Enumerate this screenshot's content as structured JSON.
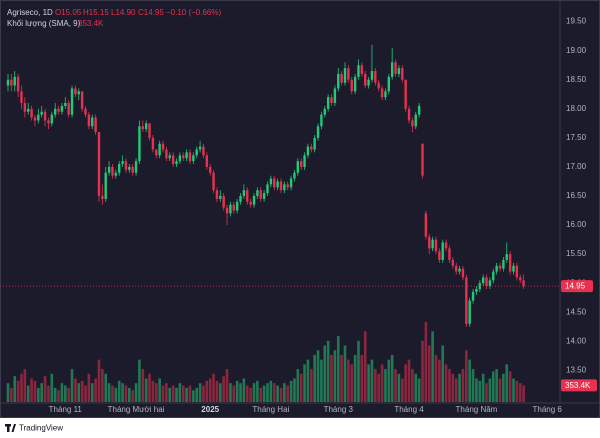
{
  "header": {
    "symbol": "Agriseco, 1D",
    "open": "O15.05",
    "high": "H15.15",
    "low": "L14.90",
    "close": "C14.95",
    "change": "−0.10 (−0.66%)",
    "volume_title": "Khối lượng (SMA, 9)",
    "volume_value": "353.4K"
  },
  "chart_data": {
    "type": "candlestick",
    "candles": [
      [
        18.4,
        18.6,
        18.3,
        18.5
      ],
      [
        18.5,
        18.6,
        18.3,
        18.4
      ],
      [
        18.4,
        18.65,
        18.3,
        18.55
      ],
      [
        18.55,
        18.6,
        18.2,
        18.3
      ],
      [
        18.3,
        18.4,
        18.0,
        18.1
      ],
      [
        18.1,
        18.2,
        17.85,
        17.95
      ],
      [
        17.95,
        18.1,
        17.9,
        18.0
      ],
      [
        18.0,
        18.05,
        17.8,
        17.85
      ],
      [
        17.85,
        17.9,
        17.7,
        17.8
      ],
      [
        17.8,
        18.0,
        17.75,
        17.9
      ],
      [
        17.9,
        18.05,
        17.85,
        17.95
      ],
      [
        17.95,
        18.0,
        17.7,
        17.8
      ],
      [
        17.8,
        17.85,
        17.65,
        17.75
      ],
      [
        17.75,
        17.95,
        17.7,
        17.9
      ],
      [
        17.9,
        18.1,
        17.85,
        18.0
      ],
      [
        18.0,
        18.05,
        17.9,
        17.95
      ],
      [
        17.95,
        18.1,
        17.9,
        18.05
      ],
      [
        18.05,
        18.2,
        18.0,
        18.1
      ],
      [
        18.1,
        18.15,
        17.85,
        17.9
      ],
      [
        17.9,
        18.4,
        17.85,
        18.35
      ],
      [
        18.35,
        18.4,
        18.2,
        18.25
      ],
      [
        18.25,
        18.35,
        18.15,
        18.3
      ],
      [
        18.3,
        18.3,
        17.95,
        18.0
      ],
      [
        18.0,
        18.05,
        17.85,
        17.9
      ],
      [
        17.9,
        17.95,
        17.65,
        17.7
      ],
      [
        17.7,
        17.9,
        17.65,
        17.85
      ],
      [
        17.85,
        17.9,
        17.55,
        17.6
      ],
      [
        17.6,
        17.6,
        16.4,
        16.5
      ],
      [
        16.5,
        16.7,
        16.35,
        16.45
      ],
      [
        16.45,
        17.0,
        16.4,
        16.9
      ],
      [
        16.9,
        17.1,
        16.85,
        17.0
      ],
      [
        17.0,
        17.05,
        16.8,
        16.85
      ],
      [
        16.85,
        16.95,
        16.8,
        16.9
      ],
      [
        16.9,
        17.1,
        16.85,
        17.05
      ],
      [
        17.05,
        17.2,
        17.0,
        17.1
      ],
      [
        17.1,
        17.15,
        16.9,
        16.95
      ],
      [
        16.95,
        17.05,
        16.9,
        17.0
      ],
      [
        17.0,
        17.05,
        16.85,
        16.9
      ],
      [
        16.9,
        17.15,
        16.85,
        17.1
      ],
      [
        17.1,
        17.8,
        17.05,
        17.7
      ],
      [
        17.7,
        17.8,
        17.6,
        17.65
      ],
      [
        17.65,
        17.8,
        17.6,
        17.75
      ],
      [
        17.75,
        17.75,
        17.45,
        17.5
      ],
      [
        17.5,
        17.55,
        17.25,
        17.3
      ],
      [
        17.3,
        17.3,
        17.15,
        17.2
      ],
      [
        17.2,
        17.45,
        17.15,
        17.4
      ],
      [
        17.4,
        17.45,
        17.25,
        17.3
      ],
      [
        17.3,
        17.35,
        17.1,
        17.15
      ],
      [
        17.15,
        17.25,
        17.1,
        17.2
      ],
      [
        17.2,
        17.25,
        17.0,
        17.05
      ],
      [
        17.05,
        17.15,
        17.0,
        17.1
      ],
      [
        17.1,
        17.25,
        17.05,
        17.2
      ],
      [
        17.2,
        17.25,
        17.1,
        17.15
      ],
      [
        17.15,
        17.3,
        17.1,
        17.25
      ],
      [
        17.25,
        17.3,
        17.05,
        17.1
      ],
      [
        17.1,
        17.25,
        17.05,
        17.2
      ],
      [
        17.2,
        17.35,
        17.15,
        17.3
      ],
      [
        17.3,
        17.45,
        17.25,
        17.35
      ],
      [
        17.35,
        17.4,
        17.15,
        17.2
      ],
      [
        17.2,
        17.25,
        16.95,
        17.0
      ],
      [
        17.0,
        17.05,
        16.85,
        16.9
      ],
      [
        16.9,
        16.95,
        16.55,
        16.6
      ],
      [
        16.6,
        16.65,
        16.4,
        16.45
      ],
      [
        16.45,
        16.6,
        16.4,
        16.5
      ],
      [
        16.5,
        16.55,
        16.25,
        16.3
      ],
      [
        16.3,
        16.35,
        16.0,
        16.2
      ],
      [
        16.2,
        16.4,
        16.15,
        16.35
      ],
      [
        16.35,
        16.4,
        16.2,
        16.25
      ],
      [
        16.25,
        16.45,
        16.2,
        16.4
      ],
      [
        16.4,
        16.55,
        16.35,
        16.5
      ],
      [
        16.5,
        16.7,
        16.45,
        16.6
      ],
      [
        16.6,
        16.65,
        16.35,
        16.4
      ],
      [
        16.4,
        16.45,
        16.3,
        16.35
      ],
      [
        16.35,
        16.55,
        16.3,
        16.5
      ],
      [
        16.5,
        16.65,
        16.45,
        16.6
      ],
      [
        16.6,
        16.65,
        16.4,
        16.45
      ],
      [
        16.45,
        16.6,
        16.4,
        16.55
      ],
      [
        16.55,
        16.75,
        16.5,
        16.7
      ],
      [
        16.7,
        16.85,
        16.65,
        16.8
      ],
      [
        16.8,
        16.85,
        16.6,
        16.65
      ],
      [
        16.65,
        16.8,
        16.6,
        16.75
      ],
      [
        16.75,
        16.8,
        16.55,
        16.6
      ],
      [
        16.6,
        16.75,
        16.55,
        16.7
      ],
      [
        16.7,
        16.75,
        16.6,
        16.65
      ],
      [
        16.65,
        16.85,
        16.6,
        16.8
      ],
      [
        16.8,
        16.95,
        16.75,
        16.9
      ],
      [
        16.9,
        17.15,
        16.85,
        17.1
      ],
      [
        17.1,
        17.15,
        16.95,
        17.0
      ],
      [
        17.0,
        17.25,
        16.95,
        17.2
      ],
      [
        17.2,
        17.4,
        17.15,
        17.35
      ],
      [
        17.35,
        17.4,
        17.25,
        17.3
      ],
      [
        17.3,
        17.55,
        17.25,
        17.5
      ],
      [
        17.5,
        17.75,
        17.45,
        17.7
      ],
      [
        17.7,
        17.95,
        17.65,
        17.9
      ],
      [
        17.9,
        18.05,
        17.85,
        18.0
      ],
      [
        18.0,
        18.25,
        17.95,
        18.2
      ],
      [
        18.2,
        18.25,
        18.05,
        18.1
      ],
      [
        18.1,
        18.4,
        18.05,
        18.35
      ],
      [
        18.35,
        18.7,
        18.3,
        18.6
      ],
      [
        18.6,
        18.65,
        18.4,
        18.45
      ],
      [
        18.45,
        18.8,
        18.4,
        18.7
      ],
      [
        18.7,
        18.75,
        18.45,
        18.5
      ],
      [
        18.5,
        18.55,
        18.25,
        18.3
      ],
      [
        18.3,
        18.6,
        18.25,
        18.55
      ],
      [
        18.55,
        18.85,
        18.5,
        18.75
      ],
      [
        18.75,
        18.8,
        18.55,
        18.6
      ],
      [
        18.6,
        18.65,
        18.35,
        18.4
      ],
      [
        18.4,
        18.55,
        18.35,
        18.5
      ],
      [
        18.5,
        19.1,
        18.45,
        18.65
      ],
      [
        18.65,
        18.7,
        18.4,
        18.45
      ],
      [
        18.45,
        18.5,
        18.3,
        18.35
      ],
      [
        18.35,
        18.4,
        18.15,
        18.2
      ],
      [
        18.2,
        18.35,
        18.15,
        18.3
      ],
      [
        18.3,
        18.6,
        18.25,
        18.55
      ],
      [
        18.55,
        19.05,
        18.5,
        18.8
      ],
      [
        18.8,
        18.85,
        18.55,
        18.6
      ],
      [
        18.6,
        18.75,
        18.55,
        18.7
      ],
      [
        18.7,
        18.75,
        18.45,
        18.5
      ],
      [
        18.5,
        18.5,
        17.95,
        18.0
      ],
      [
        18.0,
        18.05,
        17.75,
        17.8
      ],
      [
        17.8,
        17.85,
        17.6,
        17.7
      ],
      [
        17.7,
        17.95,
        17.65,
        17.9
      ],
      [
        17.9,
        18.1,
        17.85,
        18.05
      ],
      [
        17.4,
        17.4,
        16.8,
        16.85
      ],
      [
        16.2,
        16.25,
        15.75,
        15.8
      ],
      [
        15.8,
        15.85,
        15.5,
        15.6
      ],
      [
        15.6,
        15.8,
        15.55,
        15.75
      ],
      [
        15.75,
        15.8,
        15.5,
        15.55
      ],
      [
        15.55,
        15.6,
        15.35,
        15.4
      ],
      [
        15.4,
        15.75,
        15.35,
        15.7
      ],
      [
        15.7,
        15.75,
        15.55,
        15.6
      ],
      [
        15.6,
        15.65,
        15.35,
        15.4
      ],
      [
        15.4,
        15.45,
        15.25,
        15.3
      ],
      [
        15.3,
        15.35,
        15.15,
        15.2
      ],
      [
        15.2,
        15.3,
        15.15,
        15.25
      ],
      [
        15.25,
        15.3,
        15.05,
        15.1
      ],
      [
        15.1,
        15.15,
        14.25,
        14.3
      ],
      [
        14.3,
        14.75,
        14.25,
        14.7
      ],
      [
        14.7,
        14.9,
        14.65,
        14.85
      ],
      [
        14.85,
        14.95,
        14.8,
        14.9
      ],
      [
        14.9,
        15.05,
        14.85,
        15.0
      ],
      [
        15.0,
        15.15,
        14.95,
        15.1
      ],
      [
        15.1,
        15.15,
        14.9,
        14.95
      ],
      [
        14.95,
        15.1,
        14.9,
        15.05
      ],
      [
        15.05,
        15.25,
        15.0,
        15.2
      ],
      [
        15.2,
        15.35,
        15.15,
        15.3
      ],
      [
        15.3,
        15.35,
        15.2,
        15.25
      ],
      [
        15.25,
        15.45,
        15.2,
        15.4
      ],
      [
        15.4,
        15.7,
        15.35,
        15.5
      ],
      [
        15.5,
        15.55,
        15.15,
        15.2
      ],
      [
        15.2,
        15.35,
        15.15,
        15.3
      ],
      [
        15.3,
        15.35,
        15.05,
        15.1
      ],
      [
        15.1,
        15.15,
        15.0,
        15.05
      ],
      [
        15.05,
        15.15,
        14.9,
        14.95
      ]
    ],
    "volume": [
      400,
      300,
      550,
      450,
      600,
      700,
      350,
      500,
      450,
      300,
      400,
      550,
      350,
      600,
      300,
      250,
      400,
      350,
      300,
      700,
      500,
      400,
      450,
      350,
      600,
      400,
      500,
      900,
      700,
      600,
      400,
      350,
      300,
      450,
      400,
      350,
      300,
      250,
      400,
      900,
      700,
      500,
      600,
      450,
      400,
      500,
      350,
      400,
      300,
      350,
      300,
      400,
      350,
      300,
      350,
      250,
      300,
      400,
      350,
      450,
      500,
      600,
      450,
      400,
      550,
      700,
      400,
      350,
      450,
      400,
      500,
      350,
      300,
      400,
      450,
      300,
      350,
      400,
      450,
      400,
      350,
      300,
      400,
      350,
      450,
      500,
      700,
      600,
      800,
      900,
      700,
      1000,
      1100,
      900,
      1200,
      1300,
      1000,
      1100,
      1400,
      1000,
      1200,
      900,
      800,
      1000,
      1300,
      1000,
      1500,
      800,
      900,
      700,
      600,
      800,
      700,
      900,
      1000,
      700,
      600,
      500,
      800,
      900,
      700,
      600,
      500,
      1300,
      1700,
      1200,
      1500,
      1000,
      900,
      1200,
      800,
      700,
      600,
      500,
      600,
      700,
      1100,
      900,
      700,
      500,
      450,
      600,
      400,
      500,
      650,
      700,
      500,
      600,
      800,
      650,
      500,
      450,
      400,
      353.4
    ],
    "up_color": "#22c977",
    "down_color": "#e8304f",
    "ylim": [
      13.3,
      19.7
    ],
    "yticks": [
      {
        "value": 13.5,
        "label": "13.50"
      },
      {
        "value": 14,
        "label": "14.00"
      },
      {
        "value": 14.5,
        "label": "14.50"
      },
      {
        "value": 15,
        "label": "15.00"
      },
      {
        "value": 15.5,
        "label": "15.50"
      },
      {
        "value": 16,
        "label": "16.00"
      },
      {
        "value": 16.5,
        "label": "16.50"
      },
      {
        "value": 17,
        "label": "17.00"
      },
      {
        "value": 17.5,
        "label": "17.50"
      },
      {
        "value": 18,
        "label": "18.00"
      },
      {
        "value": 18.5,
        "label": "18.50"
      },
      {
        "value": 19,
        "label": "19.00"
      },
      {
        "value": 19.5,
        "label": "19.50"
      }
    ],
    "xticks": [
      {
        "value": 17,
        "label": "Tháng 11"
      },
      {
        "value": 38,
        "label": "Tháng Mười hai"
      },
      {
        "value": 60,
        "label": "2025"
      },
      {
        "value": 78,
        "label": "Tháng Hai"
      },
      {
        "value": 98,
        "label": "Tháng 3"
      },
      {
        "value": 119,
        "label": "Tháng 4"
      },
      {
        "value": 139,
        "label": "Tháng Năm"
      },
      {
        "value": 160,
        "label": "Tháng 6"
      }
    ],
    "last_price": {
      "value": 14.95,
      "label": "14.95"
    }
  },
  "footer": "TradingView"
}
